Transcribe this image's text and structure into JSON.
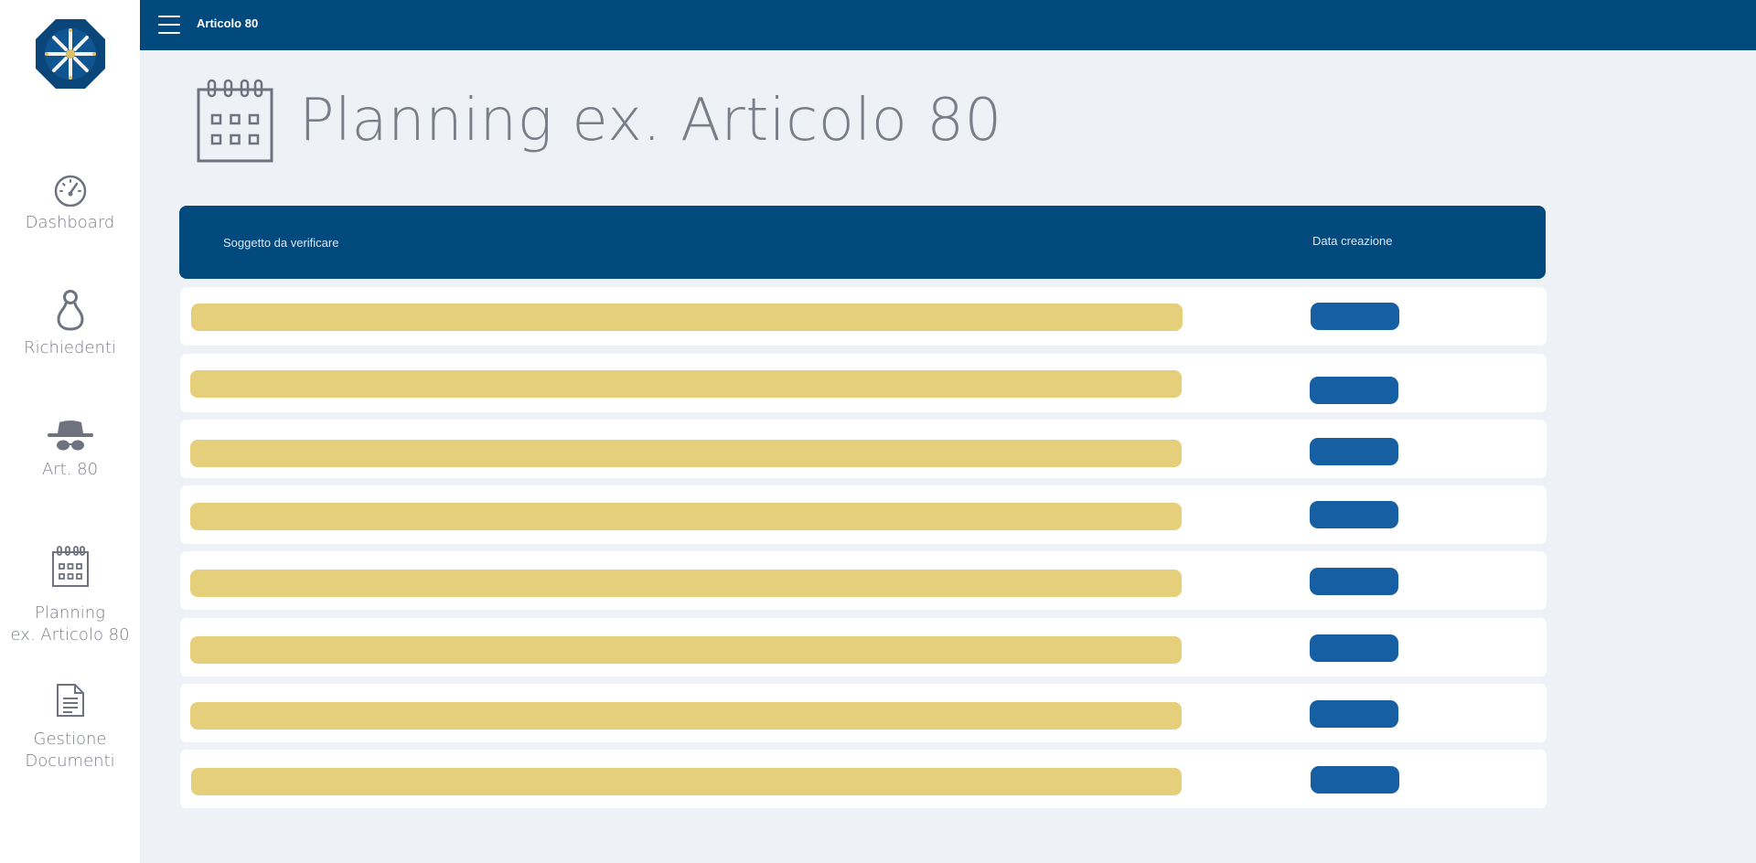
{
  "topbar": {
    "title": "Articolo 80"
  },
  "sidebar": {
    "items": [
      {
        "label": "Dashboard",
        "icon": "speedometer-icon"
      },
      {
        "label": "Richiedenti",
        "icon": "person-icon"
      },
      {
        "label": "Art. 80",
        "icon": "spy-icon"
      },
      {
        "label_line1": "Planning",
        "label_line2": "ex. Articolo 80",
        "icon": "calendar-icon"
      },
      {
        "label_line1": "Gestione",
        "label_line2": "Documenti",
        "icon": "document-icon"
      }
    ]
  },
  "page": {
    "title": "Planning ex. Articolo 80",
    "icon": "calendar-icon"
  },
  "table": {
    "columns": [
      "Soggetto da verificare",
      "Data creazione"
    ],
    "row_count": 8
  },
  "colors": {
    "brand": "#02497d",
    "placeholder_subject": "#e5cf7b",
    "placeholder_date": "#175fa3",
    "background": "#eef1f6"
  }
}
